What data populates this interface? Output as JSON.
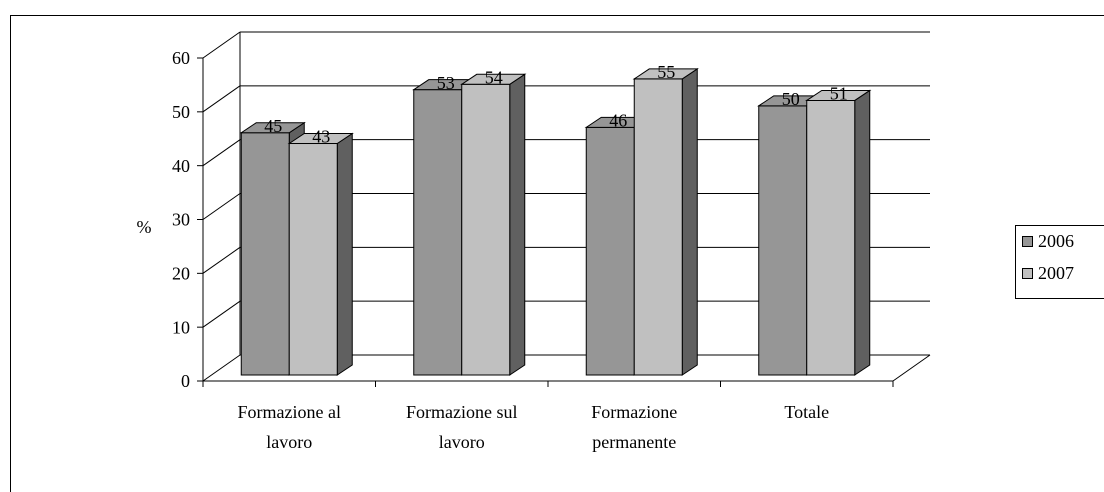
{
  "chart_data": {
    "type": "bar3d",
    "y_label": "%",
    "categories": [
      [
        "Formazione al",
        "lavoro"
      ],
      [
        "Formazione sul",
        "lavoro"
      ],
      [
        "Formazione",
        "permanente"
      ],
      [
        "Totale"
      ]
    ],
    "series": [
      {
        "name": "2006",
        "color": "#969696",
        "values": [
          45,
          53,
          46,
          50
        ]
      },
      {
        "name": "2007",
        "color": "#c0c0c0",
        "values": [
          43,
          54,
          55,
          51
        ]
      }
    ],
    "ylim": [
      0,
      60
    ],
    "yticks": [
      0,
      10,
      20,
      30,
      40,
      50,
      60
    ],
    "grid": true,
    "legend": "right"
  }
}
